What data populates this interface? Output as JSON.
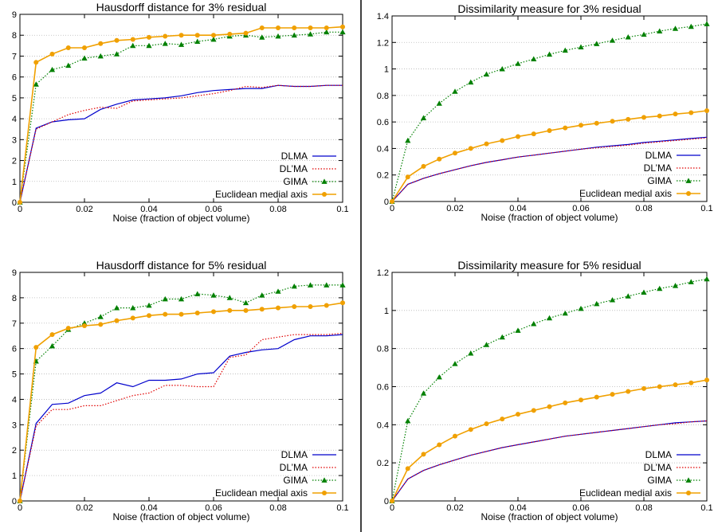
{
  "chart_data": [
    {
      "type": "line",
      "title": "Hausdorff distance for 3% residual",
      "xlabel": "Noise (fraction of object volume)",
      "ylabel": "",
      "xlim": [
        0,
        0.1
      ],
      "ylim": [
        0,
        9
      ],
      "xticks": [
        0,
        0.02,
        0.04,
        0.06,
        0.08,
        0.1
      ],
      "xtick_labels": [
        "0",
        "0.02",
        "0.04",
        "0.06",
        "0.08",
        "0.1"
      ],
      "yticks": [
        0,
        1,
        2,
        3,
        4,
        5,
        6,
        7,
        8,
        9
      ],
      "ytick_labels": [
        "0",
        "1",
        "2",
        "3",
        "4",
        "5",
        "6",
        "7",
        "8",
        "9"
      ],
      "grid": true,
      "legend_position": "bottom-right",
      "x": [
        0,
        0.005,
        0.01,
        0.015,
        0.02,
        0.025,
        0.03,
        0.035,
        0.04,
        0.045,
        0.05,
        0.055,
        0.06,
        0.065,
        0.07,
        0.075,
        0.08,
        0.085,
        0.09,
        0.095,
        0.1
      ],
      "series": [
        {
          "name": "DLMA",
          "color": "#0000cc",
          "style": "solid",
          "marker": "none",
          "values": [
            0,
            3.55,
            3.85,
            3.95,
            4.0,
            4.45,
            4.7,
            4.9,
            4.95,
            5.0,
            5.1,
            5.25,
            5.35,
            5.4,
            5.45,
            5.45,
            5.6,
            5.55,
            5.55,
            5.6,
            5.6
          ]
        },
        {
          "name": "DL’MA",
          "color": "#e00000",
          "style": "dotted",
          "marker": "none",
          "values": [
            0,
            3.5,
            3.85,
            4.2,
            4.4,
            4.55,
            4.5,
            4.85,
            4.9,
            4.95,
            5.0,
            5.1,
            5.2,
            5.35,
            5.55,
            5.5,
            5.6,
            5.55,
            5.55,
            5.6,
            5.6
          ]
        },
        {
          "name": "GIMA",
          "color": "#008000",
          "style": "dotted",
          "marker": "triangle",
          "values": [
            0,
            5.65,
            6.35,
            6.55,
            6.9,
            7.0,
            7.1,
            7.5,
            7.5,
            7.6,
            7.55,
            7.7,
            7.8,
            7.95,
            8.0,
            7.9,
            7.95,
            8.0,
            8.05,
            8.15,
            8.15
          ]
        },
        {
          "name": "Euclidean medial axis",
          "color": "#f0a000",
          "style": "solid",
          "marker": "circle",
          "values": [
            0,
            6.7,
            7.1,
            7.4,
            7.4,
            7.6,
            7.75,
            7.8,
            7.9,
            7.95,
            8.0,
            8.0,
            8.0,
            8.05,
            8.1,
            8.35,
            8.35,
            8.35,
            8.35,
            8.35,
            8.4
          ]
        }
      ]
    },
    {
      "type": "line",
      "title": "Dissimilarity measure for 3% residual",
      "xlabel": "Noise (fraction of object volume)",
      "ylabel": "",
      "xlim": [
        0,
        0.1
      ],
      "ylim": [
        0,
        1.4
      ],
      "xticks": [
        0,
        0.02,
        0.04,
        0.06,
        0.08,
        0.1
      ],
      "xtick_labels": [
        "0",
        "0.02",
        "0.04",
        "0.06",
        "0.08",
        "0.1"
      ],
      "yticks": [
        0,
        0.2,
        0.4,
        0.6,
        0.8,
        1,
        1.2,
        1.4
      ],
      "ytick_labels": [
        "0",
        "0.2",
        "0.4",
        "0.6",
        "0.8",
        "1",
        "1.2",
        "1.4"
      ],
      "grid": true,
      "legend_position": "bottom-right",
      "x": [
        0,
        0.005,
        0.01,
        0.015,
        0.02,
        0.025,
        0.03,
        0.035,
        0.04,
        0.045,
        0.05,
        0.055,
        0.06,
        0.065,
        0.07,
        0.075,
        0.08,
        0.085,
        0.09,
        0.095,
        0.1
      ],
      "series": [
        {
          "name": "DLMA",
          "color": "#0000cc",
          "style": "solid",
          "marker": "none",
          "values": [
            0,
            0.13,
            0.175,
            0.21,
            0.24,
            0.27,
            0.295,
            0.315,
            0.335,
            0.35,
            0.365,
            0.38,
            0.395,
            0.41,
            0.42,
            0.43,
            0.445,
            0.455,
            0.465,
            0.475,
            0.485
          ]
        },
        {
          "name": "DL’MA",
          "color": "#e00000",
          "style": "dotted",
          "marker": "none",
          "values": [
            0,
            0.13,
            0.175,
            0.21,
            0.24,
            0.27,
            0.295,
            0.315,
            0.335,
            0.35,
            0.365,
            0.38,
            0.395,
            0.405,
            0.415,
            0.425,
            0.44,
            0.45,
            0.46,
            0.47,
            0.48
          ]
        },
        {
          "name": "GIMA",
          "color": "#008000",
          "style": "dotted",
          "marker": "triangle",
          "values": [
            0,
            0.46,
            0.63,
            0.74,
            0.83,
            0.9,
            0.96,
            1.0,
            1.04,
            1.075,
            1.11,
            1.14,
            1.165,
            1.19,
            1.215,
            1.24,
            1.26,
            1.285,
            1.305,
            1.32,
            1.34
          ]
        },
        {
          "name": "Euclidean medial axis",
          "color": "#f0a000",
          "style": "solid",
          "marker": "circle",
          "values": [
            0,
            0.185,
            0.265,
            0.32,
            0.365,
            0.4,
            0.435,
            0.46,
            0.49,
            0.51,
            0.535,
            0.555,
            0.575,
            0.59,
            0.605,
            0.62,
            0.635,
            0.645,
            0.66,
            0.67,
            0.685
          ]
        }
      ]
    },
    {
      "type": "line",
      "title": "Hausdorff distance for 5% residual",
      "xlabel": "Noise (fraction of object volume)",
      "ylabel": "",
      "xlim": [
        0,
        0.1
      ],
      "ylim": [
        0,
        9
      ],
      "xticks": [
        0,
        0.02,
        0.04,
        0.06,
        0.08,
        0.1
      ],
      "xtick_labels": [
        "0",
        "0.02",
        "0.04",
        "0.06",
        "0.08",
        "0.1"
      ],
      "yticks": [
        0,
        1,
        2,
        3,
        4,
        5,
        6,
        7,
        8,
        9
      ],
      "ytick_labels": [
        "0",
        "1",
        "2",
        "3",
        "4",
        "5",
        "6",
        "7",
        "8",
        "9"
      ],
      "grid": true,
      "legend_position": "bottom-right",
      "x": [
        0,
        0.005,
        0.01,
        0.015,
        0.02,
        0.025,
        0.03,
        0.035,
        0.04,
        0.045,
        0.05,
        0.055,
        0.06,
        0.065,
        0.07,
        0.075,
        0.08,
        0.085,
        0.09,
        0.095,
        0.1
      ],
      "series": [
        {
          "name": "DLMA",
          "color": "#0000cc",
          "style": "solid",
          "marker": "none",
          "values": [
            0,
            3.05,
            3.8,
            3.85,
            4.15,
            4.25,
            4.65,
            4.5,
            4.75,
            4.75,
            4.8,
            5.0,
            5.05,
            5.7,
            5.85,
            5.95,
            6.0,
            6.35,
            6.5,
            6.5,
            6.55
          ]
        },
        {
          "name": "DL’MA",
          "color": "#e00000",
          "style": "dotted",
          "marker": "none",
          "values": [
            0,
            2.95,
            3.6,
            3.6,
            3.75,
            3.75,
            3.95,
            4.15,
            4.25,
            4.55,
            4.55,
            4.5,
            4.5,
            5.65,
            5.75,
            6.35,
            6.45,
            6.55,
            6.55,
            6.55,
            6.6
          ]
        },
        {
          "name": "GIMA",
          "color": "#008000",
          "style": "dotted",
          "marker": "triangle",
          "values": [
            0,
            5.5,
            6.1,
            6.75,
            7.0,
            7.25,
            7.6,
            7.6,
            7.7,
            7.95,
            7.95,
            8.15,
            8.1,
            8.0,
            7.8,
            8.1,
            8.25,
            8.45,
            8.5,
            8.5,
            8.5
          ]
        },
        {
          "name": "Euclidean medial axis",
          "color": "#f0a000",
          "style": "solid",
          "marker": "circle",
          "values": [
            0,
            6.05,
            6.55,
            6.8,
            6.9,
            6.95,
            7.1,
            7.2,
            7.3,
            7.35,
            7.35,
            7.4,
            7.45,
            7.5,
            7.5,
            7.55,
            7.6,
            7.65,
            7.65,
            7.7,
            7.8
          ]
        }
      ]
    },
    {
      "type": "line",
      "title": "Dissimilarity measure for 5% residual",
      "xlabel": "Noise (fraction of object volume)",
      "ylabel": "",
      "xlim": [
        0,
        0.1
      ],
      "ylim": [
        0,
        1.2
      ],
      "xticks": [
        0,
        0.02,
        0.04,
        0.06,
        0.08,
        0.1
      ],
      "xtick_labels": [
        "0",
        "0.02",
        "0.04",
        "0.06",
        "0.08",
        "0.1"
      ],
      "yticks": [
        0,
        0.2,
        0.4,
        0.6,
        0.8,
        1,
        1.2
      ],
      "ytick_labels": [
        "0",
        "0.2",
        "0.4",
        "0.6",
        "0.8",
        "1",
        "1.2"
      ],
      "grid": true,
      "legend_position": "bottom-right",
      "x": [
        0,
        0.005,
        0.01,
        0.015,
        0.02,
        0.025,
        0.03,
        0.035,
        0.04,
        0.045,
        0.05,
        0.055,
        0.06,
        0.065,
        0.07,
        0.075,
        0.08,
        0.085,
        0.09,
        0.095,
        0.1
      ],
      "series": [
        {
          "name": "DLMA",
          "color": "#0000cc",
          "style": "solid",
          "marker": "none",
          "values": [
            0,
            0.115,
            0.16,
            0.19,
            0.215,
            0.24,
            0.26,
            0.28,
            0.295,
            0.31,
            0.325,
            0.34,
            0.35,
            0.36,
            0.37,
            0.38,
            0.39,
            0.4,
            0.41,
            0.415,
            0.42
          ]
        },
        {
          "name": "DL’MA",
          "color": "#e00000",
          "style": "dotted",
          "marker": "none",
          "values": [
            0,
            0.115,
            0.16,
            0.19,
            0.215,
            0.24,
            0.26,
            0.28,
            0.295,
            0.31,
            0.325,
            0.34,
            0.35,
            0.36,
            0.37,
            0.38,
            0.39,
            0.4,
            0.405,
            0.415,
            0.42
          ]
        },
        {
          "name": "GIMA",
          "color": "#008000",
          "style": "dotted",
          "marker": "triangle",
          "values": [
            0,
            0.42,
            0.565,
            0.65,
            0.72,
            0.775,
            0.82,
            0.86,
            0.895,
            0.93,
            0.96,
            0.985,
            1.01,
            1.035,
            1.055,
            1.075,
            1.095,
            1.115,
            1.13,
            1.15,
            1.165
          ]
        },
        {
          "name": "Euclidean medial axis",
          "color": "#f0a000",
          "style": "solid",
          "marker": "circle",
          "values": [
            0,
            0.17,
            0.245,
            0.295,
            0.34,
            0.375,
            0.405,
            0.43,
            0.455,
            0.475,
            0.495,
            0.515,
            0.53,
            0.545,
            0.56,
            0.575,
            0.59,
            0.6,
            0.61,
            0.62,
            0.635
          ]
        }
      ]
    }
  ]
}
